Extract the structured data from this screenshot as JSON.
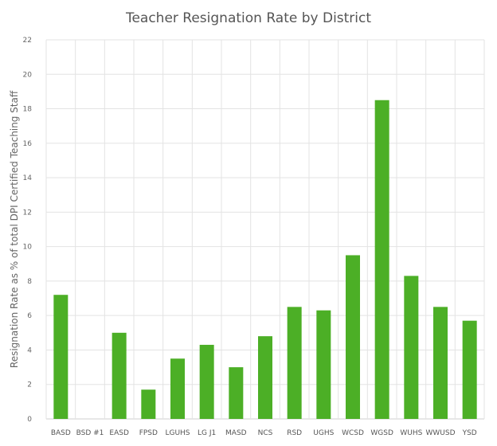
{
  "chart_data": {
    "type": "bar",
    "title": "Teacher Resignation Rate by District",
    "xlabel": "",
    "ylabel": "Resignation Rate as % of total DPI Certified Teaching Staff",
    "ylim": [
      0,
      22
    ],
    "yticks": [
      0,
      2,
      4,
      6,
      8,
      10,
      12,
      14,
      16,
      18,
      20,
      22
    ],
    "grid": true,
    "legend": "none",
    "categories": [
      "BASD",
      "BSD #1",
      "EASD",
      "FPSD",
      "LGUHS",
      "LG J1",
      "MASD",
      "NCS",
      "RSD",
      "UGHS",
      "WCSD",
      "WGSD",
      "WUHS",
      "WWUSD",
      "YSD"
    ],
    "values": [
      7.2,
      0,
      5.0,
      1.7,
      3.5,
      4.3,
      3.0,
      4.8,
      6.5,
      6.3,
      9.5,
      18.5,
      8.3,
      6.5,
      5.7
    ],
    "bar_color": "#4caf26"
  }
}
